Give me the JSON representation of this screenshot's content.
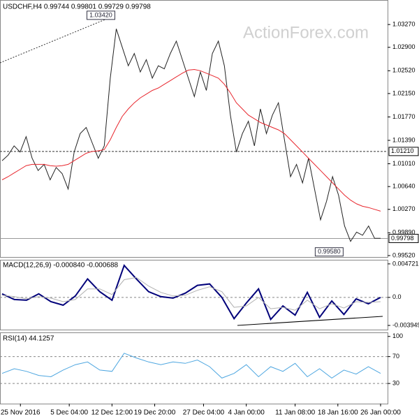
{
  "chart_data": [
    {
      "type": "line",
      "title": "USDCHF,H4 0.99744 0.99801 0.99729 0.99798",
      "watermark": "ActionForex.com",
      "xlim": [
        0,
        63
      ],
      "ylim": [
        0.99497,
        1.03668
      ],
      "yticks": [
        {
          "value": 1.0327,
          "label": "1.03270"
        },
        {
          "value": 1.029,
          "label": "1.02900"
        },
        {
          "value": 1.0252,
          "label": "1.02520"
        },
        {
          "value": 1.0215,
          "label": "1.02150"
        },
        {
          "value": 1.0177,
          "label": "1.01770"
        },
        {
          "value": 1.0139,
          "label": "1.01390"
        },
        {
          "value": 1.0101,
          "label": "1.01010"
        },
        {
          "value": 1.0064,
          "label": "1.00640"
        },
        {
          "value": 1.0027,
          "label": "1.00270"
        },
        {
          "value": 0.9989,
          "label": "0.99890"
        },
        {
          "value": 0.9952,
          "label": "0.99520"
        }
      ],
      "series": [
        {
          "color": "#222222",
          "values": [
            1.0106,
            1.0115,
            1.013,
            1.012,
            1.0145,
            1.011,
            1.009,
            1.01,
            1.0075,
            1.0095,
            1.0085,
            1.006,
            1.012,
            1.015,
            1.016,
            1.0135,
            1.011,
            1.013,
            1.024,
            1.032,
            1.029,
            1.026,
            1.028,
            1.025,
            1.027,
            1.024,
            1.026,
            1.0255,
            1.028,
            1.03,
            1.027,
            1.024,
            1.021,
            1.025,
            1.022,
            1.028,
            1.03,
            1.026,
            1.018,
            1.012,
            1.015,
            1.017,
            1.013,
            1.019,
            1.015,
            1.018,
            1.02,
            1.014,
            1.008,
            1.01,
            1.007,
            1.011,
            1.006,
            1.001,
            1.004,
            1.008,
            1.005,
            1.0,
            0.9975,
            0.999,
            0.9985,
            1.0,
            0.998,
            0.998
          ]
        },
        {
          "color": "#e8262d",
          "values": [
            1.0075,
            1.008,
            1.0086,
            1.0092,
            1.0098,
            1.01,
            1.01,
            1.01,
            1.0098,
            1.0097,
            1.0098,
            1.01,
            1.0106,
            1.0112,
            1.0118,
            1.0121,
            1.0122,
            1.0124,
            1.014,
            1.016,
            1.0178,
            1.019,
            1.02,
            1.0208,
            1.0214,
            1.022,
            1.0224,
            1.023,
            1.0236,
            1.0242,
            1.0248,
            1.0253,
            1.0254,
            1.0252,
            1.0248,
            1.0244,
            1.024,
            1.023,
            1.0216,
            1.02,
            1.019,
            1.018,
            1.0174,
            1.0168,
            1.0164,
            1.016,
            1.0156,
            1.015,
            1.014,
            1.013,
            1.012,
            1.011,
            1.01,
            1.009,
            1.008,
            1.007,
            1.006,
            1.005,
            1.0042,
            1.0036,
            1.0032,
            1.003,
            1.0027,
            1.0024
          ]
        }
      ],
      "levels": [
        {
          "value": 1.0121,
          "label": "1.01210",
          "style": "dashed"
        },
        {
          "value": 0.99798,
          "label": "0.99798",
          "style": "solid"
        }
      ],
      "annotations": [
        {
          "x": 19,
          "value": 1.0342,
          "label": "1.03420"
        },
        {
          "x": 57,
          "value": 0.9958,
          "label": "0.99580"
        }
      ]
    },
    {
      "type": "line",
      "title": "MACD(12,26,9) -0.000840 -0.000688",
      "xlim": [
        0,
        31
      ],
      "ylim": [
        -0.00454,
        0.0053
      ],
      "yticks": [
        0.004721,
        {
          "value": 0,
          "label": "0.0"
        },
        -0.003949
      ],
      "grid_dashed": [
        {
          "value": 0,
          "label": "0.0"
        }
      ],
      "series": [
        {
          "color": "#00007a",
          "values": [
            0.0005,
            -0.0003,
            -0.0004,
            0.0005,
            -0.0006,
            -0.0011,
            0.0002,
            0.0026,
            0.0008,
            -0.0004,
            0.0045,
            0.0026,
            0.0008,
            0.0001,
            -0.0001,
            0.0006,
            0.0017,
            0.0019,
            0.0,
            -0.003,
            -0.0008,
            0.0012,
            -0.0031,
            -0.0012,
            -0.0025,
            0.0007,
            -0.0028,
            -0.0005,
            -0.0024,
            -0.0002,
            -0.0009,
            0.0
          ]
        },
        {
          "color": "#b0b0b0",
          "values": [
            0.0003,
            0.0001,
            -0.0002,
            0.0001,
            -0.0001,
            -0.0006,
            -0.0003,
            0.0012,
            0.0012,
            0.0004,
            0.0025,
            0.0028,
            0.0016,
            0.0007,
            0.0002,
            0.0003,
            0.001,
            0.0015,
            0.0008,
            -0.0014,
            -0.0012,
            0.0,
            -0.0016,
            -0.0014,
            -0.0018,
            -0.0004,
            -0.0016,
            -0.0009,
            -0.0015,
            -0.0006,
            -0.0007,
            -0.0006
          ]
        }
      ]
    },
    {
      "type": "line",
      "title": "RSI(14) 44.1257",
      "xlim": [
        0,
        31
      ],
      "ylim": [
        0,
        106
      ],
      "yticks": [
        100,
        70,
        30
      ],
      "grid_dashed": [
        70,
        30
      ],
      "series": [
        {
          "color": "#4da6e0",
          "values": [
            45,
            52,
            48,
            42,
            40,
            50,
            58,
            62,
            50,
            48,
            75,
            68,
            62,
            58,
            62,
            60,
            65,
            55,
            38,
            45,
            58,
            40,
            55,
            48,
            60,
            40,
            52,
            38,
            50,
            44,
            55,
            45
          ]
        }
      ],
      "xticks": [
        {
          "value": 1.5,
          "label": "25 Nov 2016"
        },
        {
          "value": 5.5,
          "label": "5 Dec 04:00"
        },
        {
          "value": 9,
          "label": "12 Dec 12:00"
        },
        {
          "value": 12.5,
          "label": "19 Dec 20:00"
        },
        {
          "value": 16.5,
          "label": "27 Dec 04:00"
        },
        {
          "value": 20,
          "label": "4 Jan 00:00"
        },
        {
          "value": 24,
          "label": "11 Jan 08:00"
        },
        {
          "value": 27.5,
          "label": "18 Jan 16:00"
        },
        {
          "value": 31,
          "label": "26 Jan 00:00"
        }
      ]
    }
  ]
}
